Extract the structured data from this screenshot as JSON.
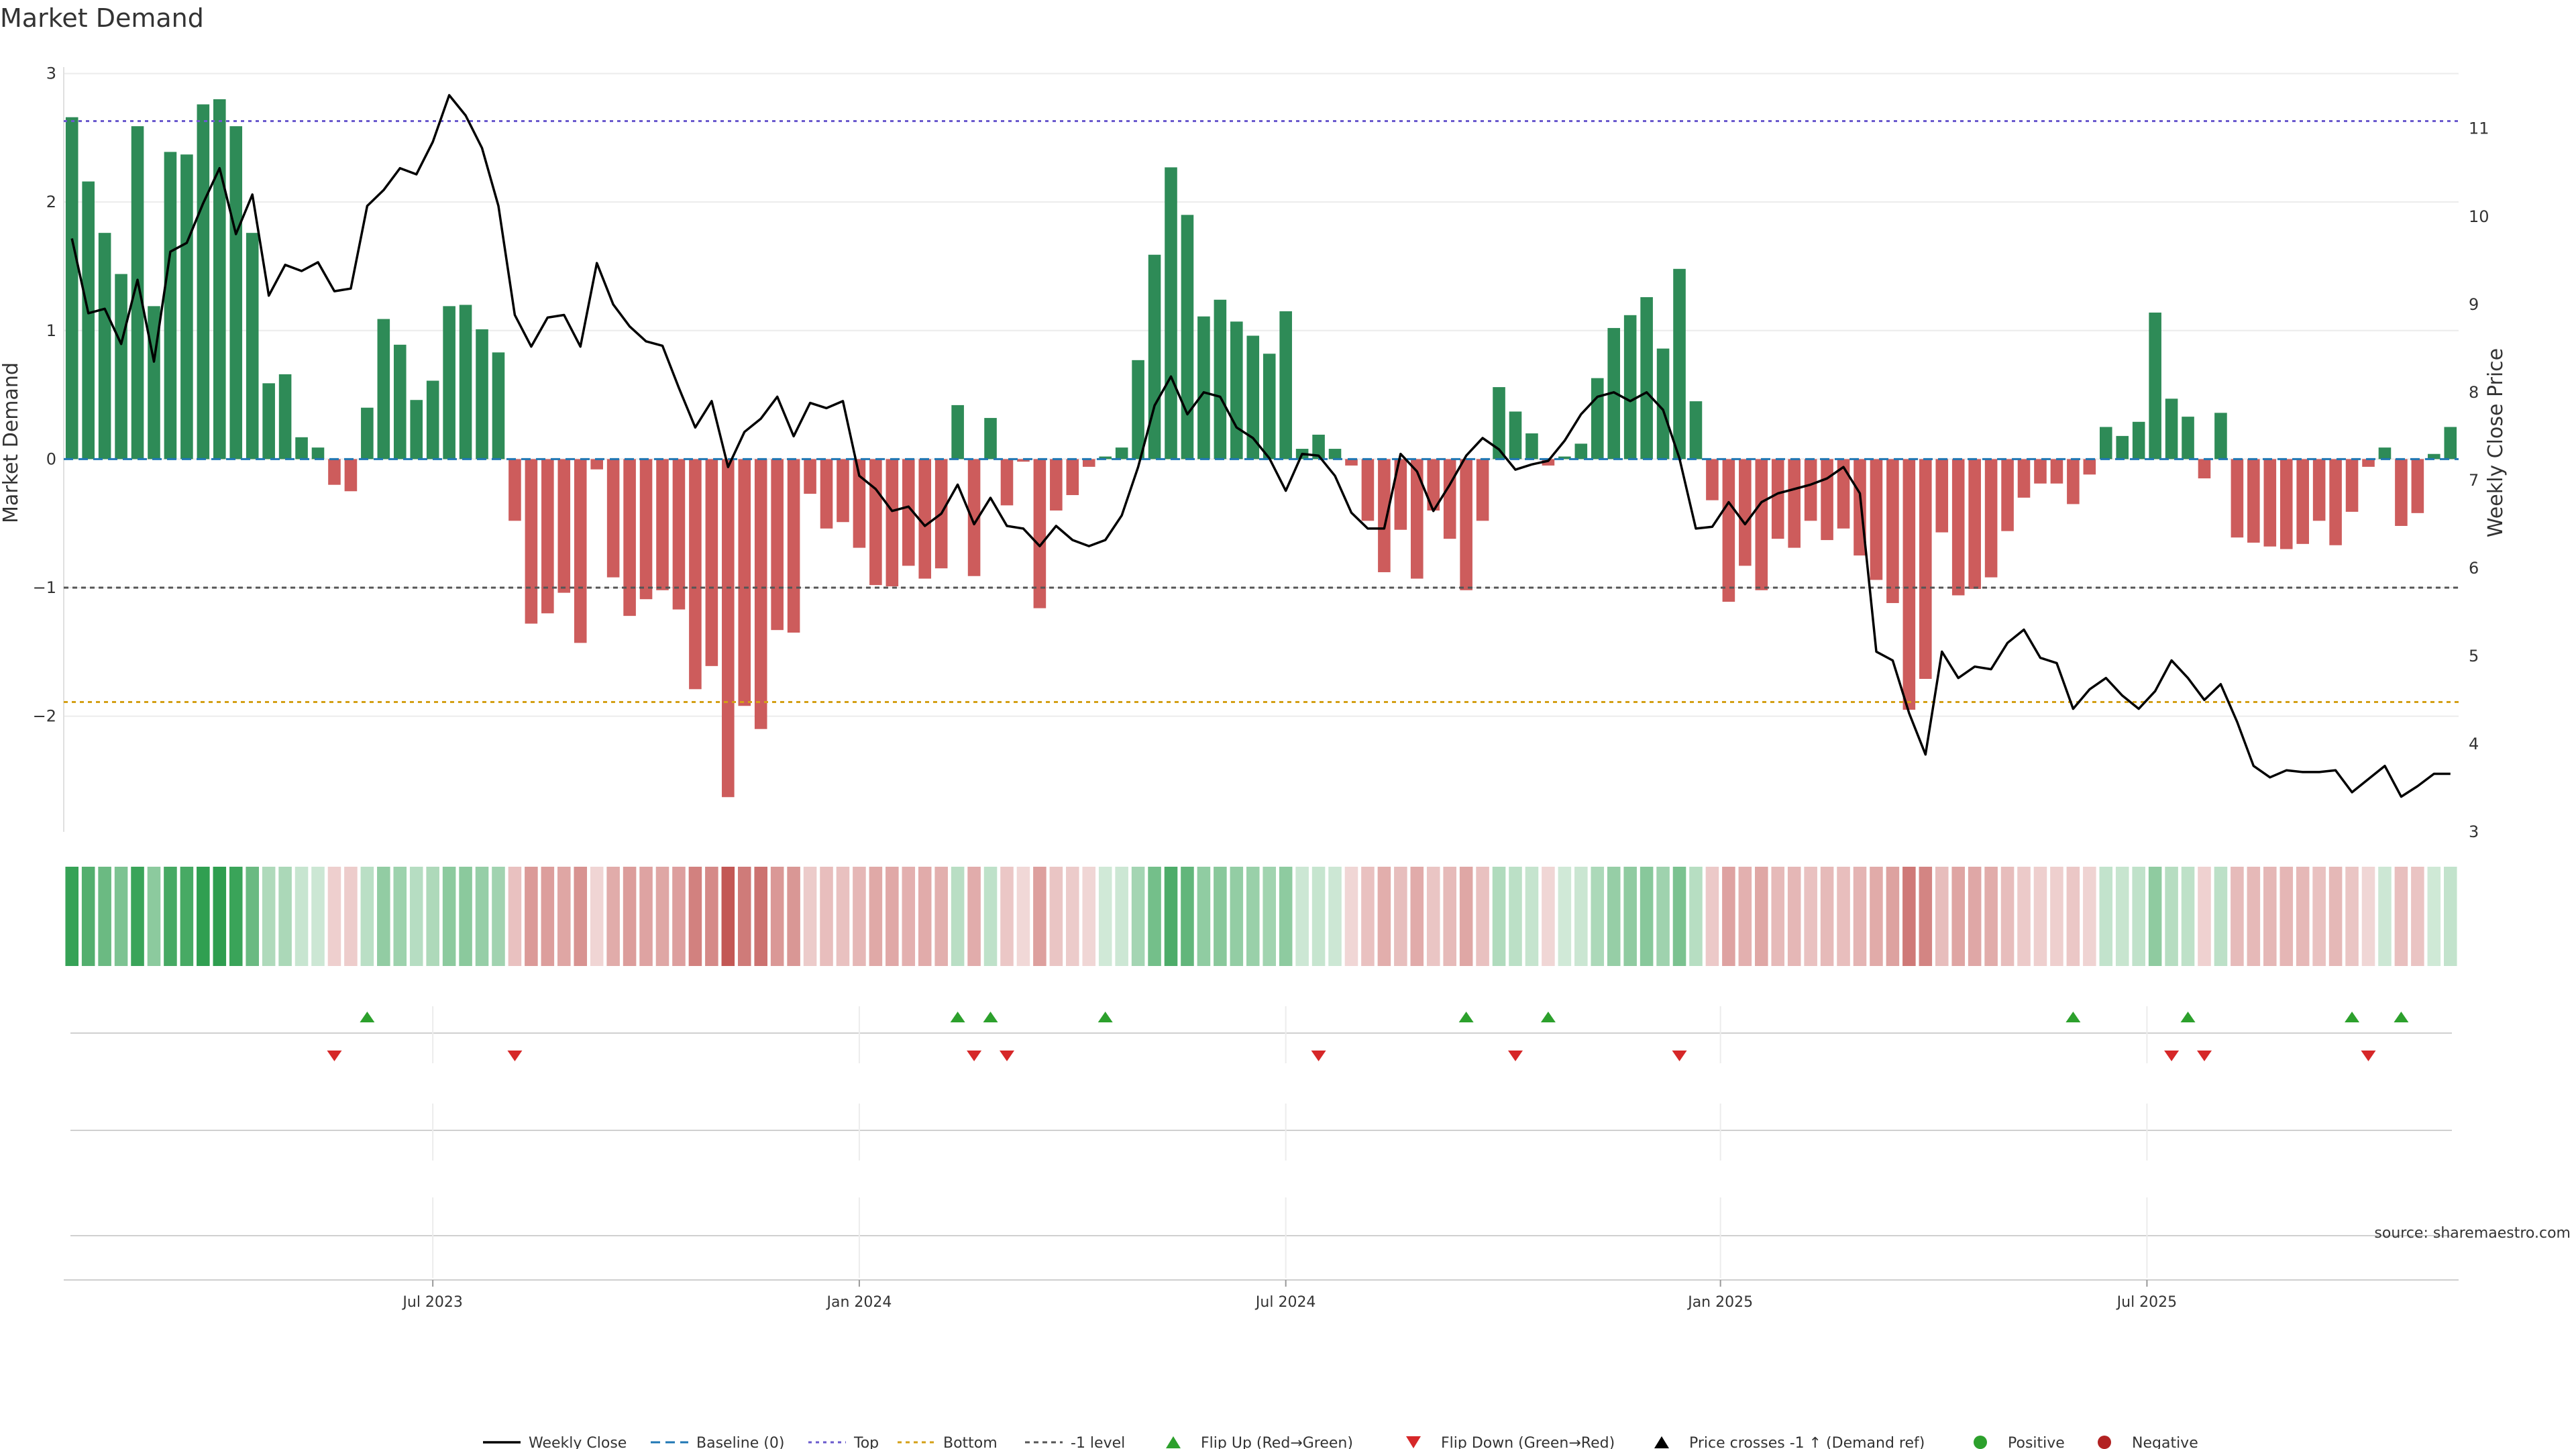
{
  "colors": {
    "positive_bar": "#2e8b57",
    "negative_bar": "#cd5c5c",
    "price_line": "#000000",
    "baseline": "#1f77b4",
    "top_line": "#6a5acd",
    "bottom_line": "#d4a017",
    "minus_one_line": "#555555",
    "flip_up": "#2ca02c",
    "flip_down": "#d62728",
    "positive_dot": "#2ca02c",
    "negative_dot": "#b22222"
  },
  "chart_data": {
    "type": "bar",
    "title": "Market Demand",
    "ylabel": "Market Demand",
    "y2label": "Weekly Close Price",
    "ylim": [
      -2.9,
      3.05
    ],
    "y2lim": [
      3.0,
      11.7
    ],
    "yticks": [
      {
        "v": 3,
        "label": "3"
      },
      {
        "v": 2,
        "label": "2"
      },
      {
        "v": 1,
        "label": "1"
      },
      {
        "v": 0,
        "label": "0"
      },
      {
        "v": -1,
        "label": "−1"
      },
      {
        "v": -2,
        "label": "−2"
      }
    ],
    "y2ticks": [
      {
        "v": 11,
        "label": "11"
      },
      {
        "v": 10,
        "label": "10"
      },
      {
        "v": 9,
        "label": "9"
      },
      {
        "v": 8,
        "label": "8"
      },
      {
        "v": 7,
        "label": "7"
      },
      {
        "v": 6,
        "label": "6"
      },
      {
        "v": 5,
        "label": "5"
      },
      {
        "v": 4,
        "label": "4"
      },
      {
        "v": 3,
        "label": "3"
      }
    ],
    "top_level": 2.63,
    "bottom_level": -1.89,
    "minus_one_level": -1,
    "xticks": [
      {
        "i": 22,
        "label": "Jul 2023"
      },
      {
        "i": 48,
        "label": "Jan 2024"
      },
      {
        "i": 74,
        "label": "Jul 2024"
      },
      {
        "i": 100.5,
        "label": "Jan 2025"
      },
      {
        "i": 126.5,
        "label": "Jul 2025"
      }
    ],
    "demand": [
      2.66,
      2.16,
      1.76,
      1.44,
      2.59,
      1.19,
      2.39,
      2.37,
      2.76,
      2.8,
      2.59,
      1.76,
      0.59,
      0.66,
      0.17,
      0.09,
      -0.2,
      -0.25,
      0.4,
      1.09,
      0.89,
      0.46,
      0.61,
      1.19,
      1.2,
      1.01,
      0.83,
      -0.48,
      -1.28,
      -1.2,
      -1.04,
      -1.43,
      -0.08,
      -0.92,
      -1.22,
      -1.09,
      -1.02,
      -1.17,
      -1.79,
      -1.61,
      -2.63,
      -1.92,
      -2.1,
      -1.33,
      -1.35,
      -0.27,
      -0.54,
      -0.49,
      -0.69,
      -0.98,
      -0.99,
      -0.83,
      -0.93,
      -0.85,
      0.42,
      -0.91,
      0.32,
      -0.36,
      -0.02,
      -1.16,
      -0.4,
      -0.28,
      -0.06,
      0.02,
      0.09,
      0.77,
      1.59,
      2.27,
      1.9,
      1.11,
      1.24,
      1.07,
      0.96,
      0.82,
      1.15,
      0.08,
      0.19,
      0.08,
      -0.05,
      -0.48,
      -0.88,
      -0.55,
      -0.93,
      -0.4,
      -0.62,
      -1.02,
      -0.48,
      0.56,
      0.37,
      0.2,
      -0.05,
      0.02,
      0.12,
      0.63,
      1.02,
      1.12,
      1.26,
      0.86,
      1.48,
      0.45,
      -0.32,
      -1.11,
      -0.83,
      -1.02,
      -0.62,
      -0.69,
      -0.48,
      -0.63,
      -0.54,
      -0.75,
      -0.94,
      -1.12,
      -1.95,
      -1.71,
      -0.57,
      -1.06,
      -1.01,
      -0.92,
      -0.56,
      -0.3,
      -0.19,
      -0.19,
      -0.35,
      -0.12,
      0.25,
      0.18,
      0.29,
      1.14,
      0.47,
      0.33,
      -0.15,
      0.36,
      -0.61,
      -0.65,
      -0.68,
      -0.7,
      -0.66,
      -0.48,
      -0.67,
      -0.41,
      -0.06,
      0.09,
      -0.52,
      -0.42,
      0.04,
      0.25
    ],
    "price": [
      9.75,
      8.9,
      8.95,
      8.55,
      9.28,
      8.35,
      9.6,
      9.7,
      10.15,
      10.55,
      9.8,
      10.25,
      9.1,
      9.45,
      9.38,
      9.48,
      9.15,
      9.18,
      10.12,
      10.3,
      10.55,
      10.48,
      10.85,
      11.38,
      11.15,
      10.78,
      10.12,
      8.88,
      8.52,
      8.85,
      8.88,
      8.52,
      9.47,
      9.0,
      8.75,
      8.58,
      8.53,
      8.05,
      7.6,
      7.9,
      7.15,
      7.55,
      7.7,
      7.95,
      7.5,
      7.88,
      7.82,
      7.9,
      7.05,
      6.9,
      6.65,
      6.7,
      6.48,
      6.62,
      6.95,
      6.5,
      6.8,
      6.48,
      6.45,
      6.25,
      6.48,
      6.32,
      6.25,
      6.32,
      6.6,
      7.15,
      7.85,
      8.18,
      7.75,
      8.0,
      7.95,
      7.6,
      7.48,
      7.25,
      6.88,
      7.3,
      7.28,
      7.05,
      6.63,
      6.45,
      6.45,
      7.3,
      7.1,
      6.65,
      6.95,
      7.28,
      7.48,
      7.35,
      7.12,
      7.18,
      7.22,
      7.45,
      7.75,
      7.95,
      8.0,
      7.9,
      8.0,
      7.8,
      7.25,
      6.45,
      6.47,
      6.75,
      6.5,
      6.75,
      6.85,
      6.9,
      6.95,
      7.02,
      7.15,
      6.85,
      5.05,
      4.95,
      4.35,
      3.88,
      5.05,
      4.75,
      4.88,
      4.85,
      5.15,
      5.3,
      4.98,
      4.92,
      4.4,
      4.62,
      4.75,
      4.55,
      4.4,
      4.6,
      4.95,
      4.75,
      4.5,
      4.68,
      4.25,
      3.75,
      3.62,
      3.7,
      3.68,
      3.68,
      3.7,
      3.45,
      3.6,
      3.75,
      3.4,
      3.52,
      3.66,
      3.66
    ],
    "flip_up": [
      18,
      54,
      56,
      63,
      85,
      90,
      122,
      129,
      139,
      142
    ],
    "flip_down": [
      16,
      27,
      55,
      57,
      76,
      88,
      98,
      128,
      130,
      140
    ]
  },
  "source": "source: sharemaestro.com",
  "legend": [
    {
      "key": "weekly_close",
      "label": "Weekly Close"
    },
    {
      "key": "baseline",
      "label": "Baseline (0)"
    },
    {
      "key": "top",
      "label": "Top"
    },
    {
      "key": "bottom",
      "label": "Bottom"
    },
    {
      "key": "minus_one",
      "label": "-1 level"
    },
    {
      "key": "flip_up",
      "label": "Flip Up (Red→Green)"
    },
    {
      "key": "flip_down",
      "label": "Flip Down (Green→Red)"
    },
    {
      "key": "price_cross",
      "label": "Price crosses -1 ↑ (Demand ref)"
    },
    {
      "key": "positive",
      "label": "Positive"
    },
    {
      "key": "negative",
      "label": "Negative"
    }
  ]
}
